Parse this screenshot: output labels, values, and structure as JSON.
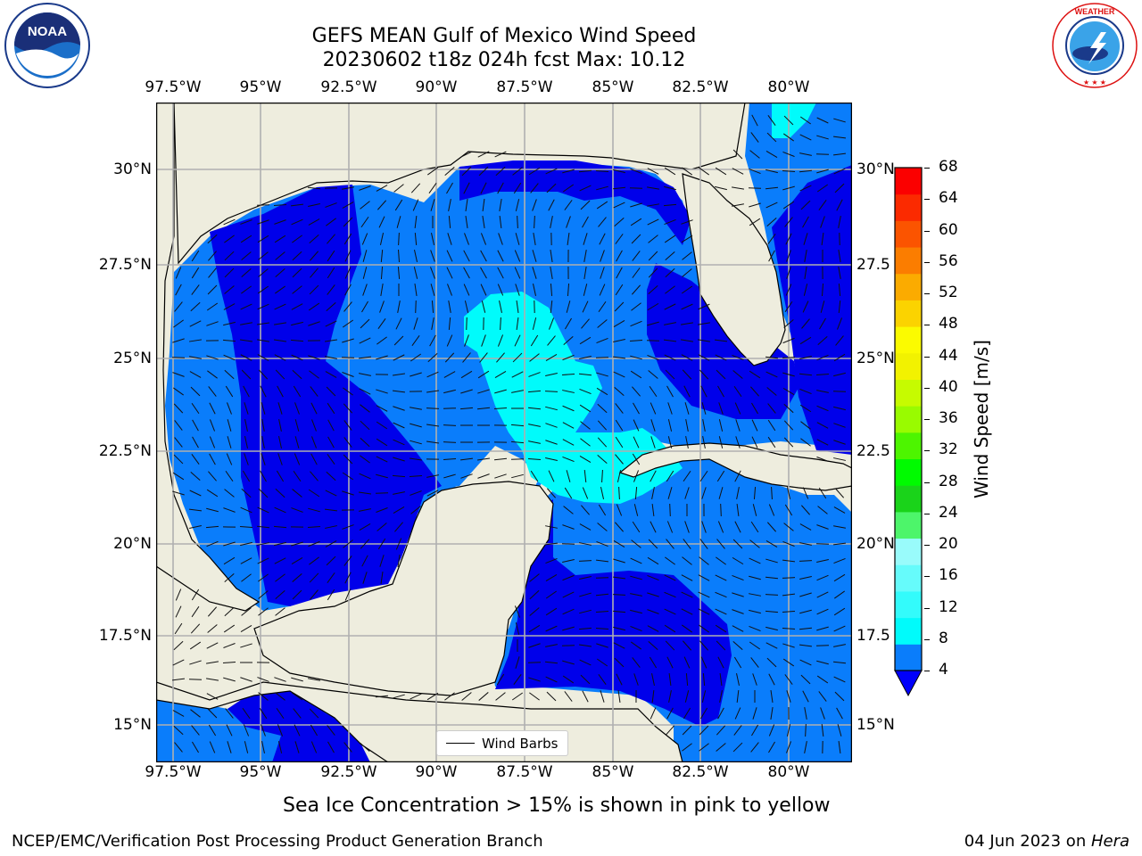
{
  "title": {
    "line1": "GEFS MEAN Gulf of Mexico Wind Speed",
    "line2": "20230602 t18z 024h fcst   Max: 10.12"
  },
  "logos": {
    "left": {
      "name": "NOAA",
      "ring_text": "NATIONAL OCEANIC AND ATMOSPHERIC ADMINISTRATION  U.S. DEPARTMENT OF COMMERCE"
    },
    "right": {
      "name": "NATIONAL WEATHER SERVICE"
    }
  },
  "axes": {
    "lon_ticks": [
      "97.5°W",
      "95°W",
      "92.5°W",
      "90°W",
      "87.5°W",
      "85°W",
      "82.5°W",
      "80°W"
    ],
    "lat_ticks_left": [
      "30°N",
      "27.5°N",
      "25°N",
      "22.5°N",
      "20°N",
      "17.5°N",
      "15°N"
    ],
    "lat_ticks_right": [
      "30°N",
      "27.5",
      "25°N",
      "22.5",
      "20°N",
      "17.5",
      "15°N"
    ]
  },
  "colorbar": {
    "label": "Wind Speed [m/s]",
    "ticks": [
      "4",
      "8",
      "12",
      "16",
      "20",
      "24",
      "28",
      "32",
      "36",
      "40",
      "44",
      "48",
      "52",
      "56",
      "60",
      "64",
      "68"
    ],
    "colors": [
      "#0a7dfb",
      "#00fbfb",
      "#33fbfb",
      "#66fbfb",
      "#99fbfb",
      "#4df56a",
      "#1ad31a",
      "#00fb00",
      "#4df500",
      "#99fb00",
      "#c6fb00",
      "#f2f200",
      "#fbfb00",
      "#fbd300",
      "#fbab00",
      "#fb7d00",
      "#fb5400",
      "#fb2a00",
      "#fb0000"
    ],
    "under_color": "#0000fb"
  },
  "legend": {
    "label": "Wind Barbs"
  },
  "subtitle": "Sea Ice Concentration > 15% is shown in pink to yellow",
  "footer": {
    "left": "NCEP/EMC/Verification Post Processing Product Generation Branch",
    "right_date": "04 Jun 2023 on ",
    "right_machine": "Hera"
  },
  "map_colors": {
    "land": "#eeedde",
    "speed_lt4": "#0000ea",
    "speed_4_8": "#0a7dfb",
    "speed_8_12": "#00fbfb",
    "grid": "#b0b0b0"
  },
  "chart_data": {
    "type": "heatmap",
    "title": "GEFS MEAN Gulf of Mexico Wind Speed",
    "units": "m/s",
    "max_value": 10.12,
    "lon_range": [
      "98.5°W",
      "78.5°W"
    ],
    "lat_range": [
      "14°N",
      "31.8°N"
    ]
  }
}
